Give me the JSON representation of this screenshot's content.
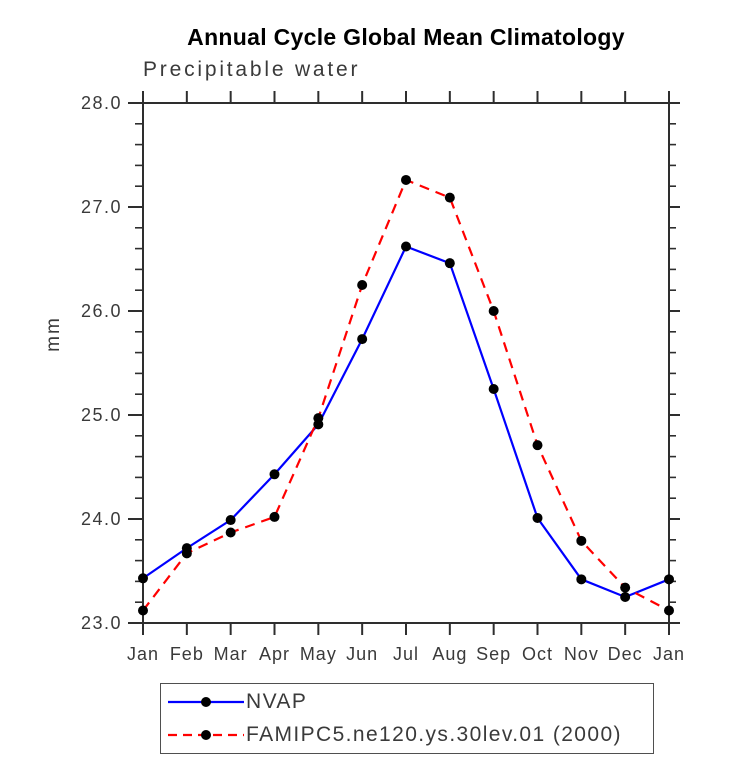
{
  "chart_data": {
    "type": "line",
    "title": "Annual Cycle Global Mean Climatology",
    "subtitle": "Precipitable water",
    "ylabel": "mm",
    "xlabel": "",
    "categories": [
      "Jan",
      "Feb",
      "Mar",
      "Apr",
      "May",
      "Jun",
      "Jul",
      "Aug",
      "Sep",
      "Oct",
      "Nov",
      "Dec",
      "Jan"
    ],
    "ylim": [
      23.0,
      28.0
    ],
    "ytick_labels": [
      "23.0",
      "24.0",
      "25.0",
      "26.0",
      "27.0",
      "28.0"
    ],
    "ytick_major_step": 1.0,
    "ytick_minor_step": 0.2,
    "grid": false,
    "legend_position": "bottom-left",
    "axis_color": "#2e2e2e",
    "text_color": "#3a3a3a",
    "marker_color": "#000000",
    "series": [
      {
        "name": "NVAP",
        "color": "#0000ff",
        "line_style": "solid",
        "marker": "filled-circle",
        "values": [
          23.43,
          23.72,
          23.99,
          24.43,
          24.91,
          25.73,
          26.62,
          26.46,
          25.25,
          24.01,
          23.42,
          23.25,
          23.42
        ]
      },
      {
        "name": "FAMIPC5.ne120.ys.30lev.01 (2000)",
        "color": "#ff0000",
        "line_style": "dashed",
        "marker": "filled-circle",
        "values": [
          23.12,
          23.67,
          23.87,
          24.02,
          24.97,
          26.25,
          27.26,
          27.09,
          26.0,
          24.71,
          23.79,
          23.34,
          23.12
        ]
      }
    ]
  }
}
